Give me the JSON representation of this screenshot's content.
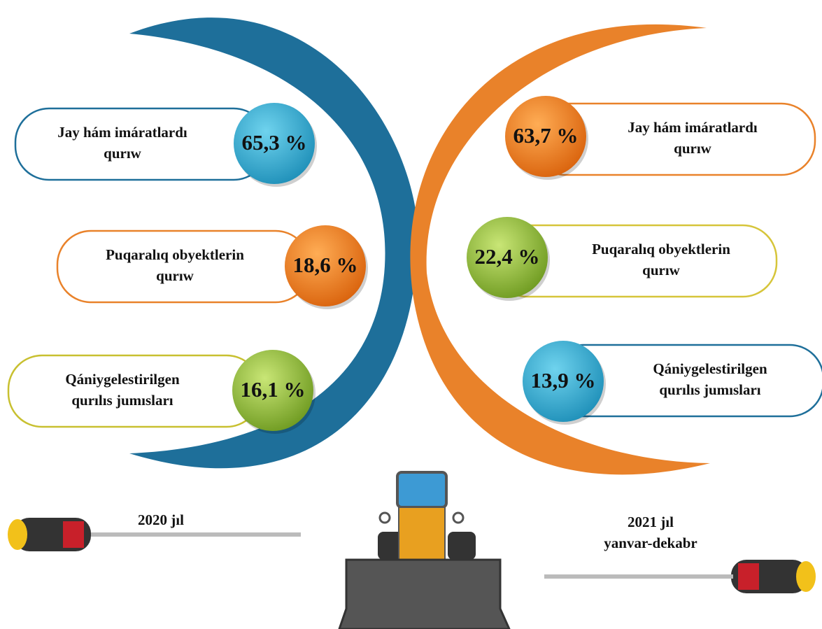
{
  "panels": [
    {
      "period": [
        "2020 jıl"
      ],
      "items": [
        {
          "label": [
            "Jay hám imáratlardı",
            "qurıw"
          ],
          "value": "65,3 %"
        },
        {
          "label": [
            "Puqaralıq obyektlerin",
            "qurıw"
          ],
          "value": "18,6 %"
        },
        {
          "label": [
            "Qániygelestirilgen",
            "qurılıs jumısları"
          ],
          "value": "16,1 %"
        }
      ]
    },
    {
      "period": [
        "2021 jıl",
        "yanvar-dekabr"
      ],
      "items": [
        {
          "label": [
            "Jay hám imáratlardı",
            "qurıw"
          ],
          "value": "63,7 %"
        },
        {
          "label": [
            "Puqaralıq obyektlerin",
            "qurıw"
          ],
          "value": "22,4 %"
        },
        {
          "label": [
            "Qániygelestirilgen",
            "qurılıs jumısları"
          ],
          "value": "13,9 %"
        }
      ]
    }
  ]
}
